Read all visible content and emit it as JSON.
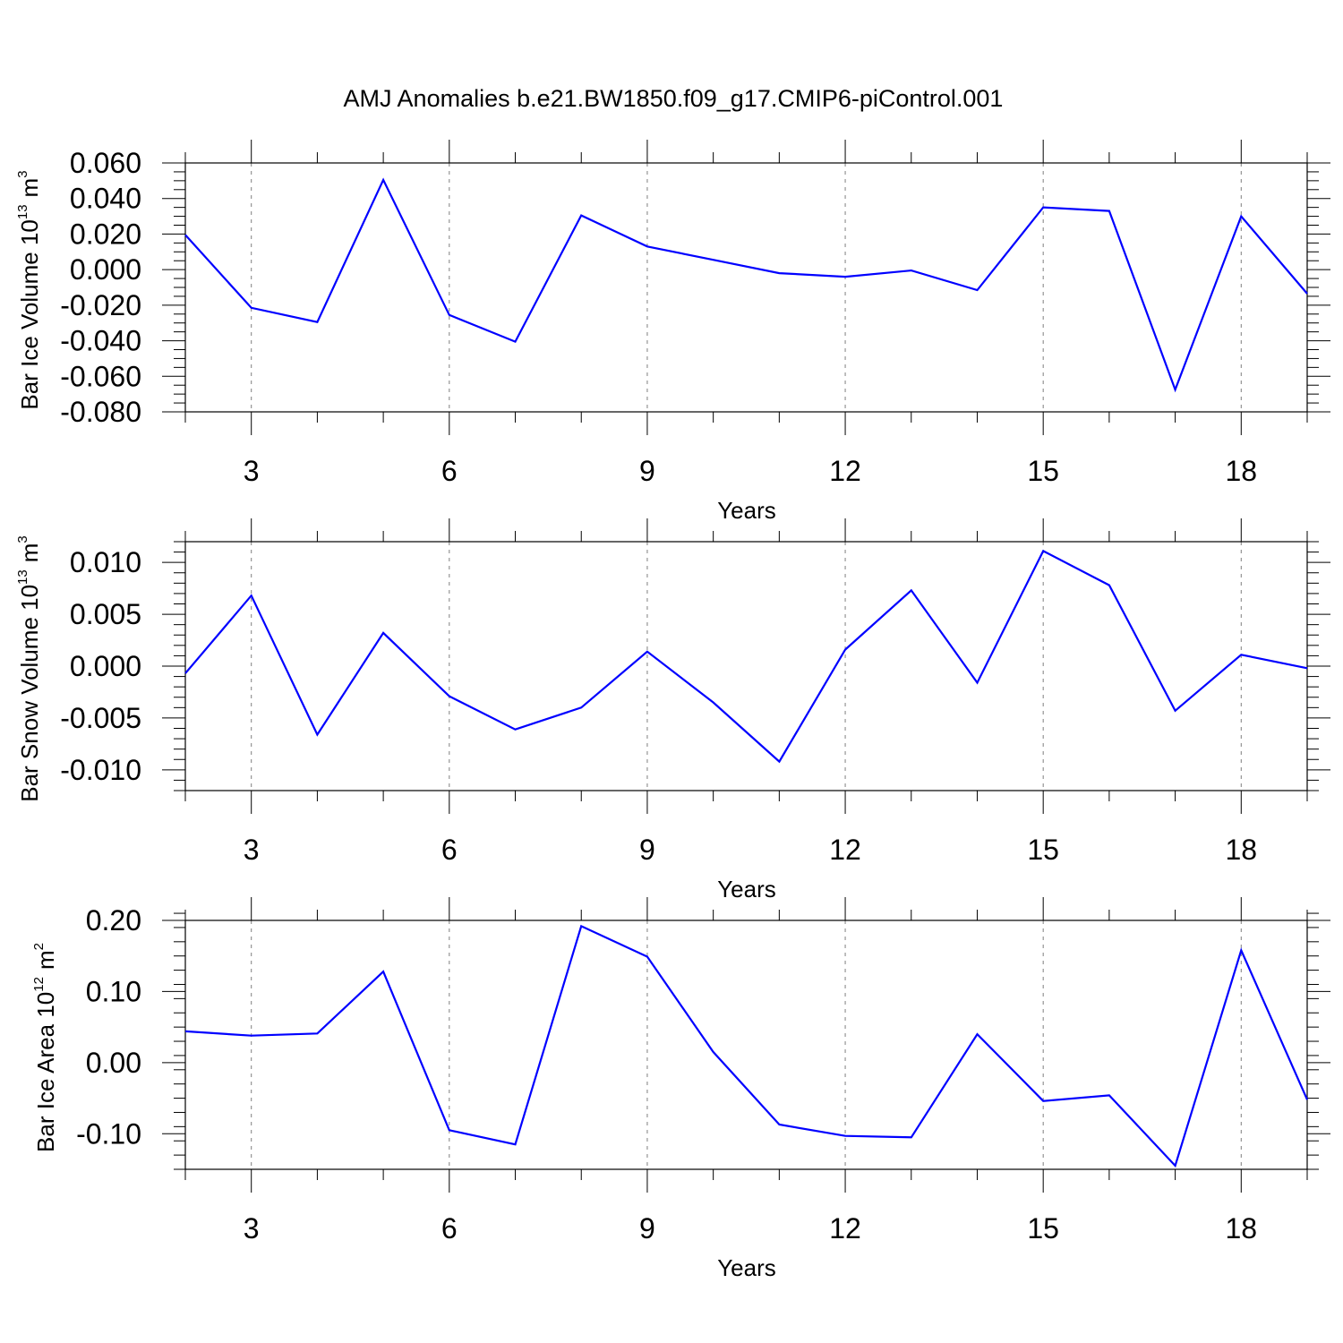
{
  "figure": {
    "title": "AMJ Anomalies b.e21.BW1850.f09_g17.CMIP6-piControl.001"
  },
  "chart_data": [
    {
      "type": "line",
      "ylabel_text": "Bar Ice Volume 10",
      "ylabel_sup": "13",
      "ylabel_unit": "m",
      "ylabel_unit_sup": "3",
      "xlabel": "Years",
      "xlim": [
        2,
        19
      ],
      "ylim": [
        -0.08,
        0.06
      ],
      "x_major_ticks": [
        3,
        6,
        9,
        12,
        15,
        18
      ],
      "y_major_ticks": [
        -0.08,
        -0.06,
        -0.04,
        -0.02,
        0.0,
        0.02,
        0.04,
        0.06
      ],
      "y_tick_labels": [
        "-0.080",
        "-0.060",
        "-0.040",
        "-0.020",
        "0.000",
        "0.020",
        "0.040",
        "0.060"
      ],
      "y_minor_step": 0.005,
      "grid": "vertical dashed at major x ticks",
      "series": [
        {
          "color": "#0000ff",
          "x": [
            2,
            3,
            4,
            5,
            6,
            7,
            8,
            9,
            10,
            11,
            12,
            13,
            14,
            15,
            16,
            17,
            18,
            19
          ],
          "values": [
            0.0195,
            -0.0215,
            -0.0295,
            0.0505,
            -0.0255,
            -0.0405,
            0.0305,
            0.013,
            0.0055,
            -0.002,
            -0.004,
            -0.0005,
            -0.0115,
            0.035,
            0.033,
            -0.0675,
            0.03,
            -0.0135
          ]
        }
      ]
    },
    {
      "type": "line",
      "ylabel_text": "Bar Snow Volume 10",
      "ylabel_sup": "13",
      "ylabel_unit": "m",
      "ylabel_unit_sup": "3",
      "xlabel": "Years",
      "xlim": [
        2,
        19
      ],
      "ylim": [
        -0.012,
        0.012
      ],
      "x_major_ticks": [
        3,
        6,
        9,
        12,
        15,
        18
      ],
      "y_major_ticks": [
        -0.01,
        -0.005,
        0.0,
        0.005,
        0.01
      ],
      "y_tick_labels": [
        "-0.010",
        "-0.005",
        "0.000",
        "0.005",
        "0.010"
      ],
      "y_minor_step": 0.001,
      "grid": "vertical dashed at major x ticks",
      "series": [
        {
          "color": "#0000ff",
          "x": [
            2,
            3,
            4,
            5,
            6,
            7,
            8,
            9,
            10,
            11,
            12,
            13,
            14,
            15,
            16,
            17,
            18,
            19
          ],
          "values": [
            -0.0007,
            0.0068,
            -0.0066,
            0.0032,
            -0.0029,
            -0.0061,
            -0.004,
            0.0014,
            -0.0035,
            -0.0092,
            0.0016,
            0.0073,
            -0.0016,
            0.0111,
            0.0078,
            -0.0043,
            0.0011,
            -0.0002
          ]
        }
      ]
    },
    {
      "type": "line",
      "ylabel_text": "Bar Ice Area 10",
      "ylabel_sup": "12",
      "ylabel_unit": "m",
      "ylabel_unit_sup": "2",
      "xlabel": "Years",
      "xlim": [
        2,
        19
      ],
      "ylim": [
        -0.15,
        0.2
      ],
      "x_major_ticks": [
        3,
        6,
        9,
        12,
        15,
        18
      ],
      "y_major_ticks": [
        -0.1,
        0.0,
        0.1,
        0.2
      ],
      "y_tick_labels": [
        "-0.10",
        "0.00",
        "0.10",
        "0.20"
      ],
      "y_minor_step": 0.02,
      "grid": "vertical dashed at major x ticks",
      "series": [
        {
          "color": "#0000ff",
          "x": [
            2,
            3,
            4,
            5,
            6,
            7,
            8,
            9,
            10,
            11,
            12,
            13,
            14,
            15,
            16,
            17,
            18,
            19
          ],
          "values": [
            0.044,
            0.038,
            0.041,
            0.128,
            -0.095,
            -0.115,
            0.192,
            0.149,
            0.015,
            -0.087,
            -0.103,
            -0.105,
            0.04,
            -0.054,
            -0.046,
            -0.145,
            0.158,
            -0.052
          ]
        }
      ]
    }
  ]
}
